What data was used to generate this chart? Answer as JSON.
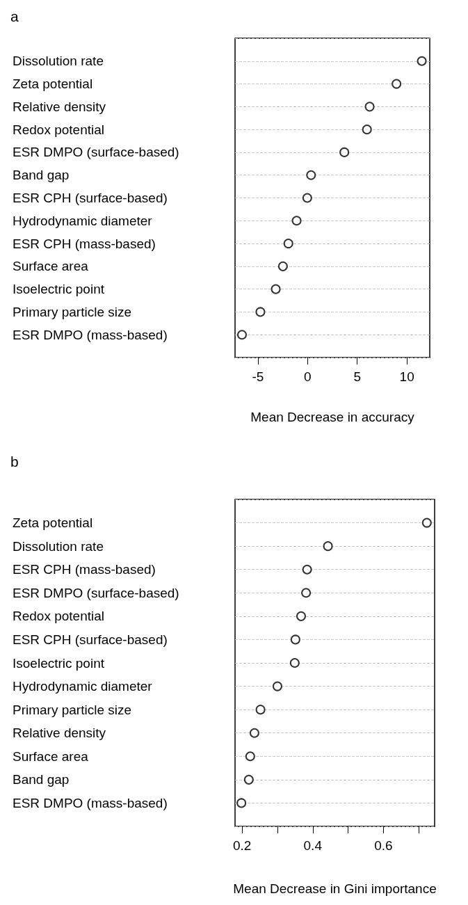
{
  "chart_data": [
    {
      "type": "scatter",
      "title": "a",
      "xlabel": "Mean Decrease in accuracy",
      "orientation": "horizontal",
      "grid": "y",
      "marker": "circle",
      "color": "#000000",
      "categories": [
        "Dissolution rate",
        "Zeta potential",
        "Relative density",
        "Redox potential",
        "ESR DMPO (surface-based)",
        "Band gap",
        "ESR CPH (surface-based)",
        "Hydrodynamic diameter",
        "ESR CPH (mass-based)",
        "Surface area",
        "Isoelectric point",
        "Primary particle size",
        "ESR DMPO (mass-based)"
      ],
      "values": [
        11.5,
        8.95,
        6.25,
        5.98,
        3.7,
        0.35,
        -0.03,
        -1.1,
        -1.93,
        -2.48,
        -3.2,
        -4.75,
        -6.6
      ],
      "xlim": [
        -7.3,
        12.3
      ],
      "xticks": [
        -5,
        0,
        5,
        10
      ]
    },
    {
      "type": "scatter",
      "title": "b",
      "xlabel": "Mean Decrease in Gini importance",
      "orientation": "horizontal",
      "grid": "y",
      "marker": "circle",
      "color": "#000000",
      "categories": [
        "Zeta potential",
        "Dissolution rate",
        "ESR CPH (mass-based)",
        "ESR DMPO (surface-based)",
        "Redox potential",
        "ESR CPH (surface-based)",
        "Isoelectric point",
        "Hydrodynamic diameter",
        "Primary particle size",
        "Relative density",
        "Surface area",
        "Band gap",
        "ESR DMPO (mass-based)"
      ],
      "values": [
        0.723,
        0.443,
        0.384,
        0.381,
        0.367,
        0.351,
        0.349,
        0.3,
        0.252,
        0.235,
        0.223,
        0.219,
        0.198
      ],
      "xlim": [
        0.18,
        0.745
      ],
      "xticks": [
        0.2,
        {
          "value": 0.3,
          "label": null
        },
        0.4,
        {
          "value": 0.5,
          "label": null
        },
        0.6,
        {
          "value": 0.7,
          "label": null
        }
      ]
    }
  ]
}
